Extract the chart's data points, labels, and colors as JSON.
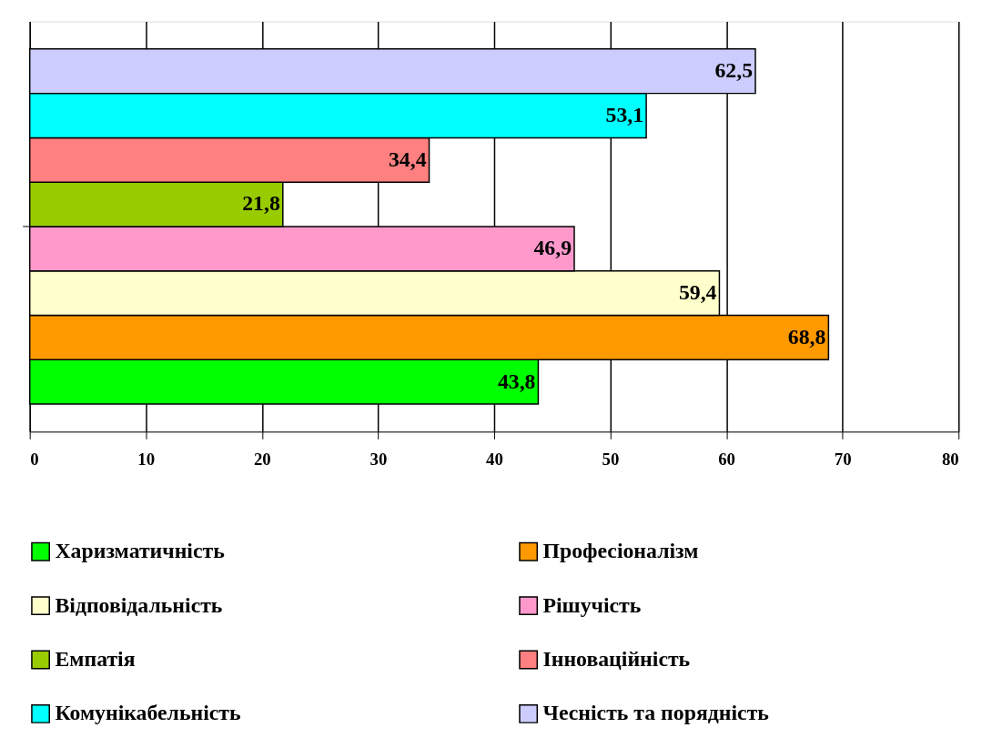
{
  "chart_data": {
    "type": "bar",
    "orientation": "horizontal",
    "categories": [
      null
    ],
    "series": [
      {
        "name": "Харизматичність",
        "color": "#00ff00",
        "values": [
          43.8
        ],
        "value_labels": [
          "43,8"
        ]
      },
      {
        "name": "Професіоналізм",
        "color": "#ff9900",
        "values": [
          68.8
        ],
        "value_labels": [
          "68,8"
        ]
      },
      {
        "name": "Відповідальність",
        "color": "#ffffcc",
        "values": [
          59.4
        ],
        "value_labels": [
          "59,4"
        ]
      },
      {
        "name": "Рішучість",
        "color": "#ff99cc",
        "values": [
          46.9
        ],
        "value_labels": [
          "46,9"
        ]
      },
      {
        "name": "Емпатія",
        "color": "#99cc00",
        "values": [
          21.8
        ],
        "value_labels": [
          "21,8"
        ]
      },
      {
        "name": "Інноваційність",
        "color": "#ff8080",
        "values": [
          34.4
        ],
        "value_labels": [
          "34,4"
        ]
      },
      {
        "name": "Комунікабельність",
        "color": "#00ffff",
        "values": [
          53.1
        ],
        "value_labels": [
          "53,1"
        ]
      },
      {
        "name": "Чесність та порядність",
        "color": "#ccccff",
        "values": [
          62.5
        ],
        "value_labels": [
          "62,5"
        ]
      }
    ],
    "xlim": [
      0,
      80
    ],
    "xticks": [
      0,
      10,
      20,
      30,
      40,
      50,
      60,
      70,
      80
    ],
    "grid": "x",
    "legend": "bottom",
    "tick_labels": "x"
  }
}
